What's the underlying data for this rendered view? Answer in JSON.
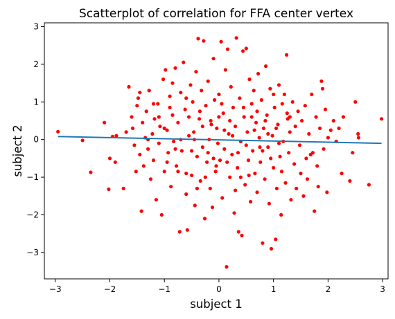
{
  "chart_data": {
    "type": "scatter",
    "title": "Scatterplot of correlation for FFA center vertex",
    "xlabel": "subject 1",
    "ylabel": "subject 2",
    "xlim": [
      -3.2,
      3.1
    ],
    "ylim": [
      -3.7,
      3.1
    ],
    "xticks": [
      -3,
      -2,
      -1,
      0,
      1,
      2,
      3
    ],
    "yticks": [
      -3,
      -2,
      -1,
      0,
      1,
      2,
      3
    ],
    "xtick_labels": [
      "−3",
      "−2",
      "−1",
      "0",
      "1",
      "2",
      "3"
    ],
    "ytick_labels": [
      "−3",
      "−2",
      "−1",
      "0",
      "1",
      "2",
      "3"
    ],
    "grid": false,
    "colors": {
      "points": "#ff0000",
      "fit_line": "#1f77b4"
    },
    "fit_line": {
      "x": [
        -2.95,
        2.98
      ],
      "y": [
        0.08,
        -0.1
      ]
    },
    "points": [
      [
        -2.95,
        0.21
      ],
      [
        -2.5,
        -0.02
      ],
      [
        -2.35,
        -0.87
      ],
      [
        -2.1,
        0.45
      ],
      [
        -2.02,
        -1.32
      ],
      [
        -2.0,
        -0.5
      ],
      [
        -1.95,
        0.08
      ],
      [
        -1.9,
        -0.6
      ],
      [
        -1.88,
        0.1
      ],
      [
        -1.75,
        -1.3
      ],
      [
        -1.7,
        0.2
      ],
      [
        -1.65,
        1.4
      ],
      [
        -1.6,
        0.6
      ],
      [
        -1.58,
        0.3
      ],
      [
        -1.55,
        -0.15
      ],
      [
        -1.52,
        -0.85
      ],
      [
        -1.5,
        0.9
      ],
      [
        -1.48,
        1.1
      ],
      [
        -1.45,
        -0.4
      ],
      [
        -1.42,
        -1.9
      ],
      [
        -1.4,
        0.45
      ],
      [
        -1.38,
        -0.7
      ],
      [
        -1.35,
        0.05
      ],
      [
        -1.33,
        0.75
      ],
      [
        -1.3,
        -0.25
      ],
      [
        -1.28,
        1.3
      ],
      [
        -1.25,
        -1.05
      ],
      [
        -1.22,
        0.15
      ],
      [
        -1.2,
        -0.55
      ],
      [
        -1.18,
        0.55
      ],
      [
        -1.15,
        -1.6
      ],
      [
        -1.12,
        0.95
      ],
      [
        -1.1,
        -0.1
      ],
      [
        -1.08,
        0.35
      ],
      [
        -1.05,
        -2.0
      ],
      [
        -1.02,
        1.6
      ],
      [
        -1.0,
        -0.85
      ],
      [
        -0.98,
        1.85
      ],
      [
        -0.95,
        0.25
      ],
      [
        -0.93,
        -0.35
      ],
      [
        -0.9,
        1.15
      ],
      [
        -0.88,
        -1.25
      ],
      [
        -0.85,
        0.65
      ],
      [
        -0.83,
        -0.05
      ],
      [
        -0.8,
        1.9
      ],
      [
        -0.78,
        -0.7
      ],
      [
        -0.75,
        0.45
      ],
      [
        -0.72,
        -2.45
      ],
      [
        -0.7,
        1.25
      ],
      [
        -0.68,
        -0.3
      ],
      [
        -0.65,
        2.05
      ],
      [
        -0.62,
        0.8
      ],
      [
        -0.6,
        -1.45
      ],
      [
        -0.58,
        -2.4
      ],
      [
        -0.55,
        0.1
      ],
      [
        -0.52,
        1.45
      ],
      [
        -0.5,
        -0.95
      ],
      [
        -0.48,
        1.0
      ],
      [
        -0.46,
        0.2
      ],
      [
        -0.44,
        -1.75
      ],
      [
        -0.42,
        1.8
      ],
      [
        -0.4,
        -0.45
      ],
      [
        -0.38,
        2.68
      ],
      [
        -0.36,
        0.55
      ],
      [
        -0.34,
        -1.1
      ],
      [
        -0.32,
        1.3
      ],
      [
        -0.3,
        -0.2
      ],
      [
        -0.28,
        2.62
      ],
      [
        -0.26,
        -2.1
      ],
      [
        -0.24,
        0.9
      ],
      [
        -0.22,
        -0.6
      ],
      [
        -0.2,
        1.55
      ],
      [
        -0.18,
        0.0
      ],
      [
        -0.16,
        -1.3
      ],
      [
        -0.14,
        0.4
      ],
      [
        -0.12,
        -1.8
      ],
      [
        -0.1,
        2.15
      ],
      [
        -0.08,
        1.05
      ],
      [
        -0.06,
        -0.85
      ],
      [
        -0.04,
        0.3
      ],
      [
        -0.02,
        -0.1
      ],
      [
        0.0,
        1.2
      ],
      [
        0.02,
        -0.55
      ],
      [
        0.04,
        2.6
      ],
      [
        0.06,
        -1.55
      ],
      [
        0.08,
        0.7
      ],
      [
        0.1,
        -0.25
      ],
      [
        0.12,
        1.85
      ],
      [
        0.14,
        -3.38
      ],
      [
        0.16,
        2.4
      ],
      [
        0.18,
        0.15
      ],
      [
        0.2,
        -1.0
      ],
      [
        0.22,
        1.4
      ],
      [
        0.24,
        -0.4
      ],
      [
        0.26,
        0.85
      ],
      [
        0.28,
        -1.95
      ],
      [
        0.3,
        0.35
      ],
      [
        0.32,
        2.7
      ],
      [
        0.34,
        -0.75
      ],
      [
        0.36,
        -2.45
      ],
      [
        0.38,
        1.1
      ],
      [
        0.4,
        -0.05
      ],
      [
        0.42,
        -2.55
      ],
      [
        0.44,
        2.35
      ],
      [
        0.46,
        0.6
      ],
      [
        0.48,
        -1.2
      ],
      [
        0.5,
        2.42
      ],
      [
        0.52,
        0.2
      ],
      [
        0.54,
        -0.55
      ],
      [
        0.56,
        1.6
      ],
      [
        0.58,
        -1.65
      ],
      [
        0.6,
        0.95
      ],
      [
        0.62,
        -0.3
      ],
      [
        0.64,
        1.3
      ],
      [
        0.66,
        -0.9
      ],
      [
        0.68,
        0.45
      ],
      [
        0.7,
        -1.4
      ],
      [
        0.72,
        1.75
      ],
      [
        0.74,
        0.05
      ],
      [
        0.76,
        -0.6
      ],
      [
        0.78,
        1.05
      ],
      [
        0.8,
        -2.75
      ],
      [
        0.82,
        0.3
      ],
      [
        0.84,
        -1.05
      ],
      [
        0.86,
        1.95
      ],
      [
        0.88,
        0.65
      ],
      [
        0.9,
        -0.2
      ],
      [
        0.92,
        -1.7
      ],
      [
        0.94,
        1.35
      ],
      [
        0.96,
        -2.9
      ],
      [
        0.98,
        0.1
      ],
      [
        1.0,
        -0.75
      ],
      [
        1.02,
        0.85
      ],
      [
        1.04,
        -2.65
      ],
      [
        1.06,
        -1.3
      ],
      [
        1.08,
        0.4
      ],
      [
        1.1,
        1.45
      ],
      [
        1.12,
        -0.45
      ],
      [
        1.14,
        -2.0
      ],
      [
        1.16,
        0.95
      ],
      [
        1.18,
        -0.05
      ],
      [
        1.2,
        1.2
      ],
      [
        1.22,
        -1.15
      ],
      [
        1.24,
        2.25
      ],
      [
        1.26,
        0.55
      ],
      [
        1.28,
        -0.35
      ],
      [
        1.3,
        0.2
      ],
      [
        1.32,
        -1.6
      ],
      [
        1.35,
        1.0
      ],
      [
        1.38,
        -0.65
      ],
      [
        1.4,
        0.35
      ],
      [
        1.42,
        -1.3
      ],
      [
        1.45,
        0.75
      ],
      [
        1.48,
        -0.15
      ],
      [
        1.5,
        -0.9
      ],
      [
        1.52,
        0.5
      ],
      [
        1.55,
        -1.5
      ],
      [
        1.58,
        0.9
      ],
      [
        1.6,
        -0.5
      ],
      [
        1.62,
        -1.05
      ],
      [
        1.65,
        0.15
      ],
      [
        1.68,
        -0.4
      ],
      [
        1.7,
        1.2
      ],
      [
        1.72,
        -0.35
      ],
      [
        1.75,
        -1.9
      ],
      [
        1.78,
        0.6
      ],
      [
        1.8,
        -0.7
      ],
      [
        1.82,
        -1.25
      ],
      [
        1.85,
        0.3
      ],
      [
        1.88,
        1.55
      ],
      [
        1.9,
        1.35
      ],
      [
        1.92,
        -0.25
      ],
      [
        1.95,
        0.8
      ],
      [
        1.98,
        -1.4
      ],
      [
        2.0,
        0.05
      ],
      [
        2.05,
        0.25
      ],
      [
        2.1,
        0.5
      ],
      [
        2.15,
        -0.05
      ],
      [
        2.2,
        0.3
      ],
      [
        2.25,
        -0.9
      ],
      [
        2.28,
        0.6
      ],
      [
        2.4,
        -1.1
      ],
      [
        2.45,
        -0.35
      ],
      [
        2.5,
        1.0
      ],
      [
        2.55,
        0.15
      ],
      [
        2.56,
        0.05
      ],
      [
        2.75,
        -1.2
      ],
      [
        2.98,
        0.55
      ],
      [
        -1.45,
        1.25
      ],
      [
        -1.3,
        0.0
      ],
      [
        -1.1,
        0.6
      ],
      [
        -0.95,
        -0.6
      ],
      [
        -0.85,
        1.5
      ],
      [
        -0.7,
        0.0
      ],
      [
        -0.6,
        1.1
      ],
      [
        -0.5,
        -0.3
      ],
      [
        -0.35,
        0.75
      ],
      [
        -0.25,
        -1.0
      ],
      [
        -0.15,
        0.5
      ],
      [
        -0.05,
        -0.7
      ],
      [
        0.05,
        0.95
      ],
      [
        0.15,
        -0.6
      ],
      [
        0.25,
        0.1
      ],
      [
        0.35,
        -0.35
      ],
      [
        0.45,
        0.85
      ],
      [
        0.55,
        -0.95
      ],
      [
        0.65,
        0.25
      ],
      [
        0.75,
        -0.2
      ],
      [
        0.85,
        0.5
      ],
      [
        0.95,
        -0.5
      ],
      [
        1.05,
        0.3
      ],
      [
        1.15,
        -0.85
      ],
      [
        1.25,
        0.7
      ],
      [
        -0.9,
        0.85
      ],
      [
        -0.75,
        -0.85
      ],
      [
        -0.55,
        0.6
      ],
      [
        -0.4,
        -1.3
      ],
      [
        -0.2,
        -0.35
      ],
      [
        0.0,
        0.6
      ],
      [
        0.2,
        0.5
      ],
      [
        0.4,
        -1.0
      ],
      [
        0.6,
        0.6
      ],
      [
        0.8,
        -0.3
      ],
      [
        1.0,
        1.2
      ],
      [
        -1.2,
        0.95
      ],
      [
        -1.0,
        0.3
      ],
      [
        -0.8,
        -0.25
      ],
      [
        -0.6,
        -0.9
      ],
      [
        -0.45,
        0.0
      ],
      [
        -0.3,
        0.35
      ],
      [
        -0.1,
        -0.5
      ],
      [
        0.1,
        0.25
      ],
      [
        0.3,
        -1.35
      ],
      [
        0.5,
        -0.15
      ],
      [
        0.7,
        0.75
      ],
      [
        0.9,
        0.15
      ],
      [
        1.1,
        -0.1
      ],
      [
        1.3,
        0.6
      ]
    ]
  }
}
